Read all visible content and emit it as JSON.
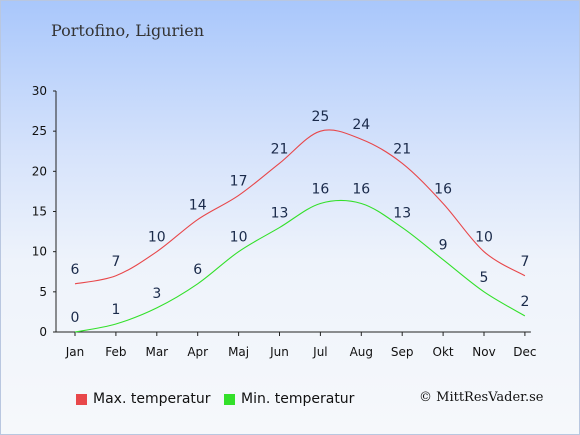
{
  "page": {
    "title": "Portofino, Ligurien",
    "credit": "© MittResVader.se"
  },
  "chart_data": {
    "type": "line",
    "categories": [
      "Jan",
      "Feb",
      "Mar",
      "Apr",
      "Maj",
      "Jun",
      "Jul",
      "Aug",
      "Sep",
      "Okt",
      "Nov",
      "Dec"
    ],
    "series": [
      {
        "name": "Max. temperatur",
        "color": "#e8474a",
        "values": [
          6,
          7,
          10,
          14,
          17,
          21,
          25,
          24,
          21,
          16,
          10,
          7
        ]
      },
      {
        "name": "Min. temperatur",
        "color": "#33e02a",
        "values": [
          0,
          1,
          3,
          6,
          10,
          13,
          16,
          16,
          13,
          9,
          5,
          2
        ]
      }
    ],
    "ylim": [
      0,
      30
    ],
    "yticks": [
      0,
      5,
      10,
      15,
      20,
      25,
      30
    ],
    "grid": false,
    "legend_position": "bottom-left"
  }
}
